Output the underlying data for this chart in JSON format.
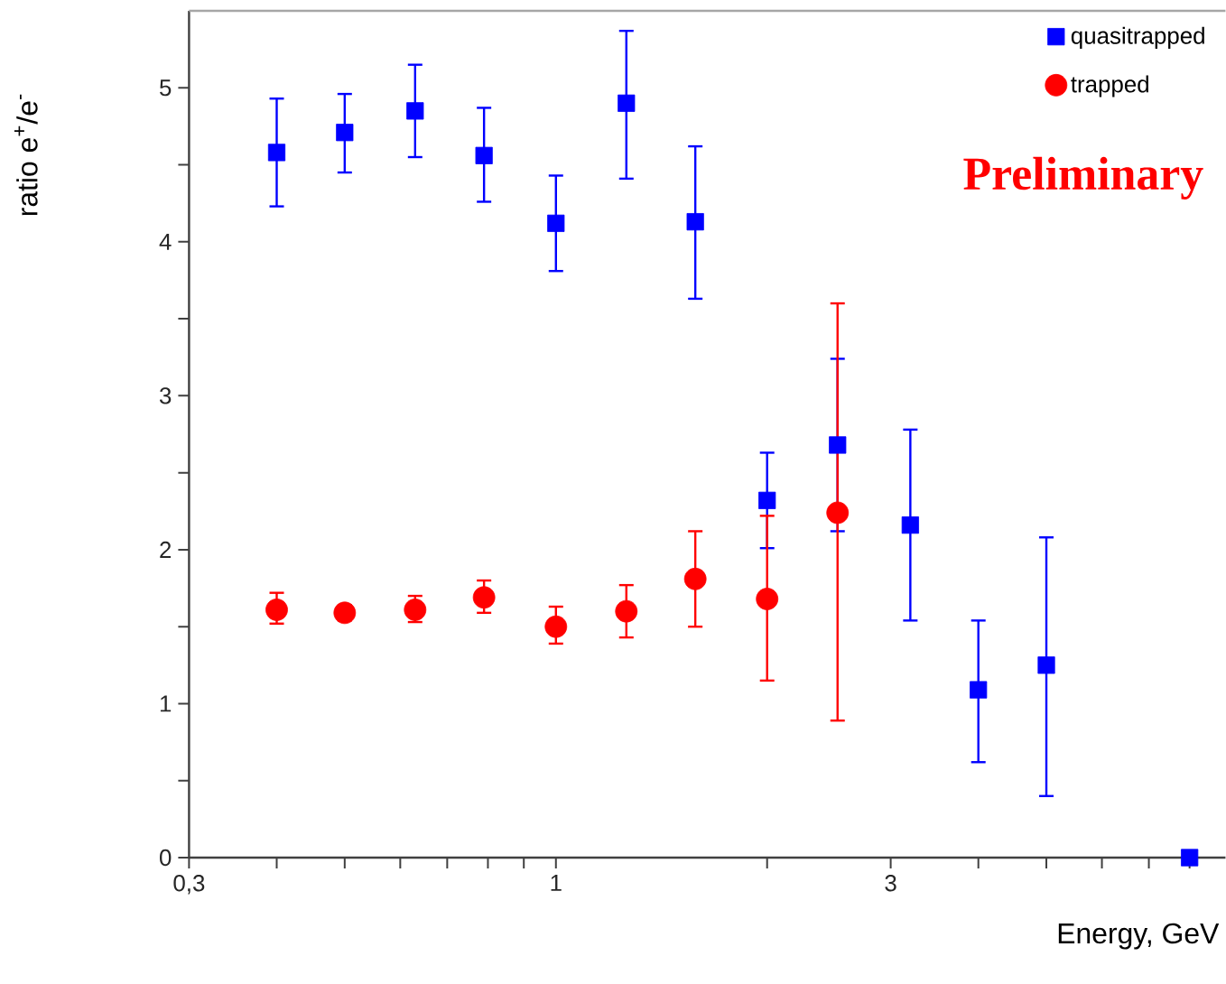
{
  "chart_data": {
    "type": "scatter",
    "xlabel": "Energy, GeV",
    "ylabel": "ratio e$^{+}$/e$^{-}$",
    "log": "x",
    "xlim": [
      0.3,
      9
    ],
    "ylim": [
      0,
      5.5
    ],
    "xticks": [
      {
        "value": 0.3,
        "label": "0,3"
      },
      {
        "value": 0.4,
        "label": null
      },
      {
        "value": 0.5,
        "label": null
      },
      {
        "value": 0.6,
        "label": null
      },
      {
        "value": 0.7,
        "label": null
      },
      {
        "value": 0.8,
        "label": null
      },
      {
        "value": 0.9,
        "label": null
      },
      1,
      {
        "value": 2,
        "label": null
      },
      3,
      {
        "value": 4,
        "label": null
      },
      {
        "value": 5,
        "label": null
      },
      {
        "value": 6,
        "label": null
      },
      {
        "value": 7,
        "label": null
      },
      {
        "value": 8,
        "label": null
      }
    ],
    "yticks": [
      0,
      {
        "value": 0.5,
        "label": null
      },
      1,
      {
        "value": 1.5,
        "label": null
      },
      2,
      {
        "value": 2.5,
        "label": null
      },
      3,
      {
        "value": 3.5,
        "label": null
      },
      4,
      {
        "value": 4.5,
        "label": null
      },
      5
    ],
    "legend": "top right",
    "annotations": [
      "Preliminary"
    ],
    "series": [
      {
        "name": "quasitrapped",
        "color": "#0000ff",
        "marker": "square",
        "x": [
          0.4,
          0.5,
          0.63,
          0.79,
          1.0,
          1.26,
          1.58,
          2.0,
          2.52,
          3.2,
          4.0,
          5.0,
          8.0
        ],
        "values": [
          4.58,
          4.71,
          4.85,
          4.56,
          4.12,
          4.9,
          4.13,
          2.32,
          2.68,
          2.16,
          1.09,
          1.25,
          0
        ],
        "errors": [
          [
            4.23,
            4.93
          ],
          [
            4.45,
            4.96
          ],
          [
            4.55,
            5.15
          ],
          [
            4.26,
            4.87
          ],
          [
            3.81,
            4.43
          ],
          [
            4.41,
            5.37
          ],
          [
            3.63,
            4.62
          ],
          [
            2.01,
            2.63
          ],
          [
            2.12,
            3.24
          ],
          [
            1.54,
            2.78
          ],
          [
            0.62,
            1.54
          ],
          [
            0.4,
            2.08
          ],
          null
        ]
      },
      {
        "name": "trapped",
        "color": "#ff0000",
        "marker": "circle",
        "x": [
          0.4,
          0.5,
          0.63,
          0.79,
          1.0,
          1.26,
          1.58,
          2.0,
          2.52
        ],
        "values": [
          1.61,
          1.59,
          1.61,
          1.69,
          1.5,
          1.6,
          1.81,
          1.68,
          2.24
        ],
        "errors": [
          [
            1.52,
            1.72
          ],
          [
            1.54,
            1.64
          ],
          [
            1.53,
            1.7
          ],
          [
            1.59,
            1.8
          ],
          [
            1.39,
            1.63
          ],
          [
            1.43,
            1.77
          ],
          [
            1.5,
            2.12
          ],
          [
            1.15,
            2.22
          ],
          [
            0.89,
            3.6
          ]
        ]
      }
    ]
  }
}
